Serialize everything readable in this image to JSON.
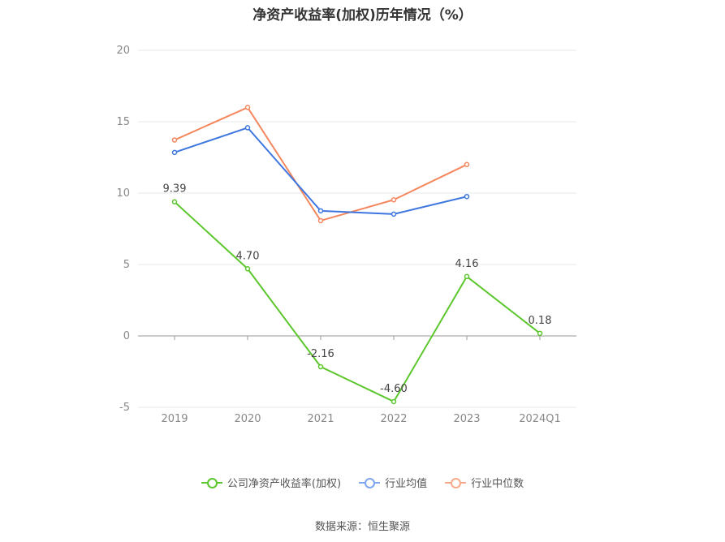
{
  "chart_data": {
    "type": "line",
    "title": "净资产收益率(加权)历年情况（%）",
    "categories": [
      "2019",
      "2020",
      "2021",
      "2022",
      "2023",
      "2024Q1"
    ],
    "ylim": [
      -5,
      20
    ],
    "yticks": [
      "-5",
      "0",
      "5",
      "10",
      "15",
      "20"
    ],
    "grid": true,
    "legend_position": "bottom",
    "series": [
      {
        "name": "公司净资产收益率(加权)",
        "color": "#5cc72d",
        "values": [
          9.39,
          4.7,
          -2.16,
          -4.6,
          4.16,
          0.18
        ],
        "labels": [
          "9.39",
          "4.70",
          "-2.16",
          "-4.60",
          "4.16",
          "0.18"
        ]
      },
      {
        "name": "行业均值",
        "color": "#3e76e0",
        "values": [
          12.85,
          14.58,
          8.76,
          8.53,
          9.76,
          null
        ]
      },
      {
        "name": "行业中位数",
        "color": "#f4875d",
        "values": [
          13.72,
          16.0,
          8.07,
          9.53,
          12.0,
          null
        ]
      }
    ]
  },
  "legend_colors": [
    "#5cc72d",
    "#7fa6ef",
    "#f7a98b"
  ],
  "source": "数据来源：恒生聚源"
}
